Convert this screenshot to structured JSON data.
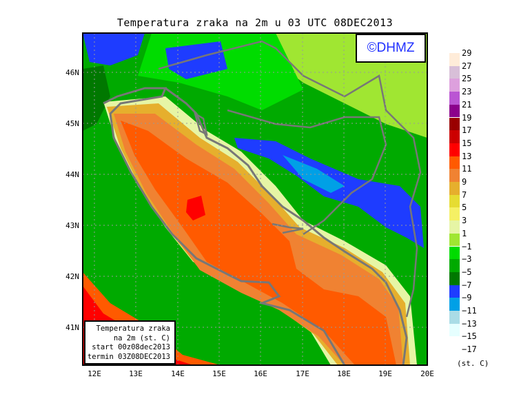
{
  "title": "Temperatura zraka na 2m u 03 UTC 08DEC2013",
  "logo": "©DHMZ",
  "info_box": {
    "line1": "Temperatura zraka",
    "line2": "na 2m (st. C)",
    "line3": "start 00z08dec2013",
    "line4": "termin 03Z08DEC2013"
  },
  "lon_ticks": [
    "12E",
    "13E",
    "14E",
    "15E",
    "16E",
    "17E",
    "18E",
    "19E",
    "20E"
  ],
  "lat_ticks": [
    "41N",
    "42N",
    "43N",
    "44N",
    "45N",
    "46N"
  ],
  "legend": {
    "units": "(st. C)",
    "labels": [
      "29",
      "27",
      "25",
      "23",
      "21",
      "19",
      "17",
      "15",
      "13",
      "11",
      "9",
      "7",
      "5",
      "3",
      "1",
      "−1",
      "−3",
      "−5",
      "−7",
      "−9",
      "−11",
      "−13",
      "−15",
      "−17"
    ],
    "colors": [
      "#ffecd9",
      "#d8bfd8",
      "#dda0dd",
      "#ba55d3",
      "#8b008b",
      "#990000",
      "#cc0000",
      "#ff0000",
      "#ff5a00",
      "#f08232",
      "#e6af2d",
      "#e6dc32",
      "#f5f064",
      "#e6f5a5",
      "#a0e632",
      "#00dc00",
      "#00aa00",
      "#007800",
      "#1e3cff",
      "#00a0e6",
      "#aadce6",
      "#e6ffff"
    ]
  }
}
